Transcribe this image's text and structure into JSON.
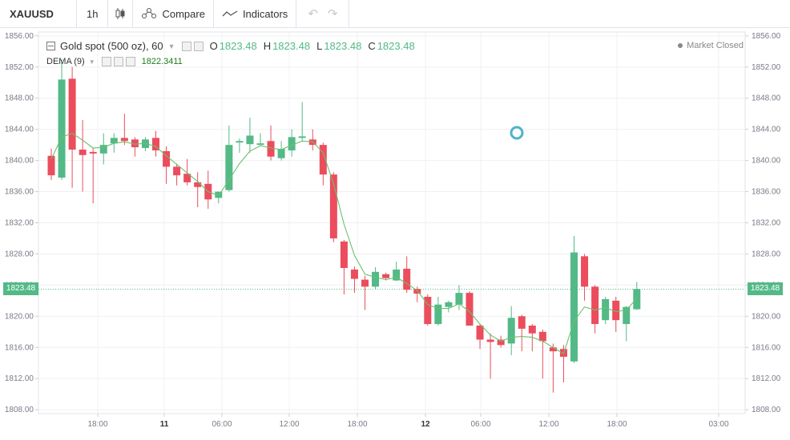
{
  "toolbar": {
    "symbol": "XAUUSD",
    "interval": "1h",
    "compare_label": "Compare",
    "indicators_label": "Indicators"
  },
  "legend": {
    "title": "Gold spot (500 oz), 60",
    "open_label": "O",
    "open": "1823.48",
    "high_label": "H",
    "high": "1823.48",
    "low_label": "L",
    "low": "1823.48",
    "close_label": "C",
    "close": "1823.48",
    "indicator_label": "DEMA (9)",
    "indicator_value": "1822.3411",
    "status": "Market Closed"
  },
  "last_price_label": "1823.48",
  "colors": {
    "up": "#53b987",
    "down": "#eb4d5c",
    "dema": "#6cc06c",
    "grid": "#eef0f3",
    "axis": "#787b86"
  },
  "chart_data": {
    "type": "candlestick",
    "y_ticks": [
      "1856.00",
      "1852.00",
      "1848.00",
      "1844.00",
      "1840.00",
      "1836.00",
      "1832.00",
      "1828.00",
      "1824.00",
      "1820.00",
      "1816.00",
      "1812.00",
      "1808.00"
    ],
    "ylim": [
      1807.5,
      1856.5
    ],
    "x_ticks": [
      "18:00",
      "11",
      "06:00",
      "12:00",
      "18:00",
      "12",
      "06:00",
      "12:00",
      "18:00",
      "03:00"
    ],
    "last_price": 1823.48,
    "candles": [
      {
        "o": 1840.6,
        "h": 1841.5,
        "l": 1837.5,
        "c": 1838.1
      },
      {
        "o": 1837.8,
        "h": 1853.0,
        "l": 1837.5,
        "c": 1850.4
      },
      {
        "o": 1850.5,
        "h": 1852.0,
        "l": 1836.5,
        "c": 1841.4
      },
      {
        "o": 1841.4,
        "h": 1845.2,
        "l": 1836.0,
        "c": 1840.7
      },
      {
        "o": 1841.1,
        "h": 1841.6,
        "l": 1834.5,
        "c": 1840.9
      },
      {
        "o": 1840.9,
        "h": 1843.5,
        "l": 1839.5,
        "c": 1842.0
      },
      {
        "o": 1842.2,
        "h": 1843.5,
        "l": 1841.0,
        "c": 1842.9
      },
      {
        "o": 1842.9,
        "h": 1846.0,
        "l": 1842.0,
        "c": 1842.5
      },
      {
        "o": 1842.7,
        "h": 1843.0,
        "l": 1840.5,
        "c": 1841.7
      },
      {
        "o": 1841.6,
        "h": 1843.0,
        "l": 1841.2,
        "c": 1842.7
      },
      {
        "o": 1842.9,
        "h": 1843.8,
        "l": 1840.5,
        "c": 1841.3
      },
      {
        "o": 1841.2,
        "h": 1841.8,
        "l": 1837.0,
        "c": 1839.2
      },
      {
        "o": 1839.2,
        "h": 1839.6,
        "l": 1836.8,
        "c": 1838.1
      },
      {
        "o": 1838.3,
        "h": 1840.2,
        "l": 1836.8,
        "c": 1837.2
      },
      {
        "o": 1837.2,
        "h": 1838.5,
        "l": 1834.0,
        "c": 1836.6
      },
      {
        "o": 1837.0,
        "h": 1838.7,
        "l": 1833.8,
        "c": 1835.0
      },
      {
        "o": 1835.2,
        "h": 1836.0,
        "l": 1834.5,
        "c": 1836.0
      },
      {
        "o": 1836.2,
        "h": 1844.5,
        "l": 1836.0,
        "c": 1842.0
      },
      {
        "o": 1842.3,
        "h": 1842.8,
        "l": 1841.0,
        "c": 1842.5
      },
      {
        "o": 1842.1,
        "h": 1845.5,
        "l": 1841.0,
        "c": 1843.2
      },
      {
        "o": 1842.0,
        "h": 1843.5,
        "l": 1842.0,
        "c": 1842.2
      },
      {
        "o": 1842.5,
        "h": 1844.5,
        "l": 1840.0,
        "c": 1840.5
      },
      {
        "o": 1840.3,
        "h": 1842.5,
        "l": 1840.0,
        "c": 1841.5
      },
      {
        "o": 1841.3,
        "h": 1844.0,
        "l": 1840.5,
        "c": 1843.0
      },
      {
        "o": 1842.9,
        "h": 1847.5,
        "l": 1842.5,
        "c": 1843.1
      },
      {
        "o": 1842.7,
        "h": 1844.0,
        "l": 1841.3,
        "c": 1842.0
      },
      {
        "o": 1842.0,
        "h": 1842.3,
        "l": 1836.8,
        "c": 1838.2
      },
      {
        "o": 1838.2,
        "h": 1838.5,
        "l": 1829.5,
        "c": 1830.0
      },
      {
        "o": 1829.6,
        "h": 1829.8,
        "l": 1822.8,
        "c": 1826.2
      },
      {
        "o": 1826.0,
        "h": 1826.4,
        "l": 1823.0,
        "c": 1824.8
      },
      {
        "o": 1824.7,
        "h": 1825.2,
        "l": 1820.8,
        "c": 1823.8
      },
      {
        "o": 1823.8,
        "h": 1826.3,
        "l": 1823.5,
        "c": 1825.7
      },
      {
        "o": 1825.4,
        "h": 1825.6,
        "l": 1824.6,
        "c": 1824.9
      },
      {
        "o": 1824.6,
        "h": 1827.0,
        "l": 1824.5,
        "c": 1826.0
      },
      {
        "o": 1826.1,
        "h": 1827.7,
        "l": 1823.0,
        "c": 1823.4
      },
      {
        "o": 1823.5,
        "h": 1823.8,
        "l": 1821.8,
        "c": 1822.9
      },
      {
        "o": 1822.5,
        "h": 1822.8,
        "l": 1818.8,
        "c": 1819.0
      },
      {
        "o": 1819.0,
        "h": 1822.5,
        "l": 1818.8,
        "c": 1821.5
      },
      {
        "o": 1821.2,
        "h": 1822.0,
        "l": 1820.5,
        "c": 1821.8
      },
      {
        "o": 1821.5,
        "h": 1824.0,
        "l": 1820.8,
        "c": 1823.0
      },
      {
        "o": 1823.0,
        "h": 1823.2,
        "l": 1818.8,
        "c": 1818.8
      },
      {
        "o": 1818.8,
        "h": 1819.0,
        "l": 1815.8,
        "c": 1817.0
      },
      {
        "o": 1817.0,
        "h": 1817.8,
        "l": 1812.0,
        "c": 1816.7
      },
      {
        "o": 1817.0,
        "h": 1817.5,
        "l": 1816.0,
        "c": 1816.3
      },
      {
        "o": 1816.5,
        "h": 1821.3,
        "l": 1815.0,
        "c": 1819.8
      },
      {
        "o": 1820.0,
        "h": 1820.2,
        "l": 1815.5,
        "c": 1818.4
      },
      {
        "o": 1818.8,
        "h": 1819.0,
        "l": 1815.5,
        "c": 1817.8
      },
      {
        "o": 1818.0,
        "h": 1818.3,
        "l": 1812.0,
        "c": 1816.8
      },
      {
        "o": 1816.0,
        "h": 1816.5,
        "l": 1810.2,
        "c": 1815.5
      },
      {
        "o": 1815.8,
        "h": 1816.3,
        "l": 1811.5,
        "c": 1814.8
      },
      {
        "o": 1814.2,
        "h": 1830.3,
        "l": 1814.0,
        "c": 1828.2
      },
      {
        "o": 1827.7,
        "h": 1828.0,
        "l": 1822.0,
        "c": 1823.8
      },
      {
        "o": 1823.8,
        "h": 1824.0,
        "l": 1817.8,
        "c": 1819.0
      },
      {
        "o": 1819.5,
        "h": 1822.5,
        "l": 1819.0,
        "c": 1822.2
      },
      {
        "o": 1822.0,
        "h": 1822.5,
        "l": 1818.0,
        "c": 1819.5
      },
      {
        "o": 1819.0,
        "h": 1821.3,
        "l": 1816.8,
        "c": 1821.2
      },
      {
        "o": 1820.9,
        "h": 1824.4,
        "l": 1820.8,
        "c": 1823.5
      }
    ],
    "dema": [
      1840.2,
      1843.0,
      1843.5,
      1842.6,
      1841.6,
      1841.7,
      1842.2,
      1842.4,
      1842.1,
      1842.2,
      1841.8,
      1840.6,
      1839.5,
      1838.4,
      1837.3,
      1836.0,
      1835.5,
      1837.5,
      1839.6,
      1841.2,
      1841.9,
      1841.6,
      1841.4,
      1842.0,
      1842.5,
      1842.4,
      1841.0,
      1837.0,
      1831.8,
      1827.8,
      1825.4,
      1825.0,
      1824.7,
      1825.0,
      1824.2,
      1823.3,
      1821.5,
      1821.0,
      1821.0,
      1821.6,
      1820.6,
      1819.0,
      1817.6,
      1816.8,
      1817.3,
      1817.4,
      1817.3,
      1816.8,
      1816.0,
      1815.2,
      1819.4,
      1821.2,
      1820.8,
      1821.1,
      1820.6,
      1820.8,
      1822.3
    ]
  }
}
